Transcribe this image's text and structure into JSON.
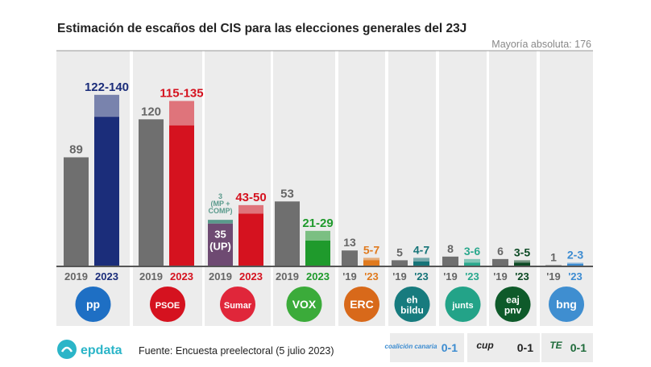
{
  "chart_data": {
    "type": "bar",
    "title": "Estimación de escaños del CIS para las elecciones generales del 23J",
    "reference_line": {
      "label": "Mayoría absoluta: 176",
      "value": 176
    },
    "ylim": [
      0,
      176
    ],
    "grid": false,
    "parties": [
      {
        "name": "PP",
        "logo_text": "pp",
        "color": "#1b2d7a",
        "logo_color": "#1e6fc4",
        "y2019": 89,
        "range2023": [
          122,
          140
        ],
        "label2019": "89",
        "label2023": "122-140",
        "year_labels": [
          "2019",
          "2023"
        ]
      },
      {
        "name": "PSOE",
        "logo_text": "PSOE",
        "color": "#d5121f",
        "logo_color": "#d5121f",
        "y2019": 120,
        "range2023": [
          115,
          135
        ],
        "label2019": "120",
        "label2023": "115-135",
        "year_labels": [
          "2019",
          "2023"
        ]
      },
      {
        "name": "Sumar",
        "logo_text": "Sumar",
        "color": "#d5121f",
        "logo_color": "#e0263a",
        "y2019": 35,
        "y2019_extra": 3,
        "label2019": "35\n(UP)",
        "label2019_extra": "3\n(MP +\nCOMP)",
        "range2023": [
          43,
          50
        ],
        "label2023": "43-50",
        "year_labels": [
          "2019",
          "2023"
        ],
        "color2019": "#6e4a72",
        "color2019_extra": "#5a9a8c",
        "label2023_color": "#d5121f"
      },
      {
        "name": "VOX",
        "logo_text": "VOX",
        "color": "#1f9a2c",
        "logo_color": "#3bab3a",
        "y2019": 53,
        "range2023": [
          21,
          29
        ],
        "label2019": "53",
        "label2023": "21-29",
        "year_labels": [
          "2019",
          "2023"
        ]
      },
      {
        "name": "ERC",
        "logo_text": "ERC",
        "color": "#e07a1e",
        "logo_color": "#d8691a",
        "y2019": 13,
        "range2023": [
          5,
          7
        ],
        "label2019": "13",
        "label2023": "5-7",
        "year_labels": [
          "'19",
          "'23"
        ]
      },
      {
        "name": "EH Bildu",
        "logo_text": "eh\nbildu",
        "color": "#167478",
        "logo_color": "#177b7e",
        "y2019": 5,
        "range2023": [
          4,
          7
        ],
        "label2019": "5",
        "label2023": "4-7",
        "year_labels": [
          "'19",
          "'23"
        ]
      },
      {
        "name": "Junts",
        "logo_text": "junts",
        "color": "#2aa88d",
        "logo_color": "#23a388",
        "y2019": 8,
        "range2023": [
          3,
          6
        ],
        "label2019": "8",
        "label2023": "3-6",
        "year_labels": [
          "'19",
          "'23"
        ]
      },
      {
        "name": "EAJ-PNV",
        "logo_text": "eaj\npnv",
        "color": "#0c4a24",
        "logo_color": "#0e5a2a",
        "y2019": 6,
        "range2023": [
          3,
          5
        ],
        "label2019": "6",
        "label2023": "3-5",
        "year_labels": [
          "'19",
          "'23"
        ]
      },
      {
        "name": "BNG",
        "logo_text": "bng",
        "color": "#3c8bd1",
        "logo_color": "#3f8ed0",
        "y2019": 1,
        "range2023": [
          2,
          3
        ],
        "label2019": "1",
        "label2023": "2-3",
        "year_labels": [
          "'19",
          "'23"
        ]
      }
    ],
    "others": [
      {
        "name": "coalición canaria",
        "value": "0-1",
        "color": "#3a8bd0"
      },
      {
        "name": "cup",
        "value": "0-1",
        "color": "#222222"
      },
      {
        "name": "TE",
        "value": "0-1",
        "color": "#1e6b3a"
      }
    ],
    "color_2019": "#6f6f6f"
  },
  "footer": {
    "brand": "epdata",
    "source": "Fuente: Encuesta preelectoral (5 julio 2023)"
  }
}
